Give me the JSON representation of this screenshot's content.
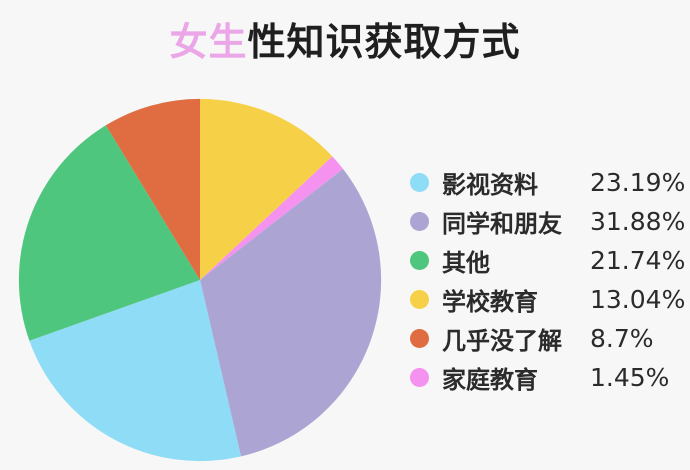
{
  "page": {
    "background": "#f7f7f7"
  },
  "title": {
    "highlight": "女生",
    "rest": "性知识获取方式",
    "highlight_color": "#eaa6e6",
    "text_color": "#1f1f1f"
  },
  "chart_data": {
    "type": "pie",
    "title": "女生性知识获取方式",
    "legend_position": "right",
    "start_angle_deg": 0,
    "direction": "clockwise",
    "items": [
      {
        "label": "影视资料",
        "value": 23.19,
        "value_label": "23.19%",
        "color": "#8edcf6"
      },
      {
        "label": "同学和朋友",
        "value": 31.88,
        "value_label": "31.88%",
        "color": "#aca5d3"
      },
      {
        "label": "其他",
        "value": 21.74,
        "value_label": "21.74%",
        "color": "#4fc67d"
      },
      {
        "label": "学校教育",
        "value": 13.04,
        "value_label": "13.04%",
        "color": "#f6d148"
      },
      {
        "label": "几乎没了解",
        "value": 8.7,
        "value_label": "8.7%",
        "color": "#e06d41"
      },
      {
        "label": "家庭教育",
        "value": 1.45,
        "value_label": "1.45%",
        "color": "#f591ef"
      }
    ],
    "pie_order": [
      3,
      5,
      1,
      0,
      2,
      4
    ]
  }
}
